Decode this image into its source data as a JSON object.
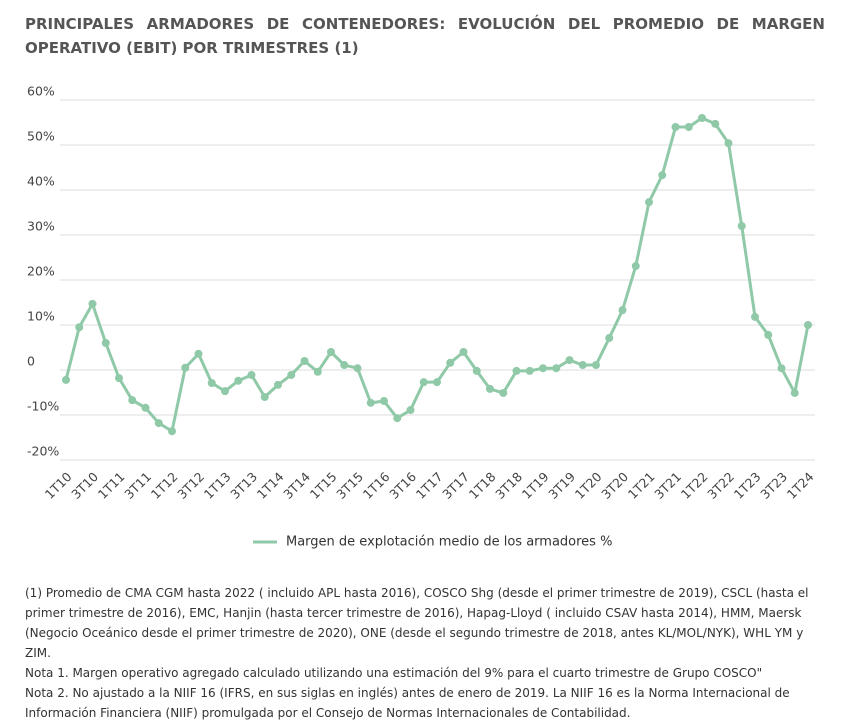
{
  "chart_data": {
    "type": "line",
    "title": "PRINCIPALES ARMADORES DE CONTENEDORES: EVOLUCIÓN DEL PROMEDIO  DE MARGEN OPERATIVO (EBIT) POR TRIMESTRES (1)",
    "categories": [
      "1T10",
      null,
      "3T10",
      null,
      "1T11",
      null,
      "3T11",
      null,
      "1T12",
      null,
      "3T12",
      null,
      "1T13",
      null,
      "3T13",
      null,
      "1T14",
      null,
      "3T14",
      null,
      "1T15",
      null,
      "3T15",
      null,
      "1T16",
      null,
      "3T16",
      null,
      "1T17",
      null,
      "3T17",
      null,
      "1T18",
      null,
      "3T18",
      null,
      "1T19",
      null,
      "3T19",
      null,
      "1T20",
      null,
      "3T20",
      null,
      "1T21",
      null,
      "3T21",
      null,
      "1T22",
      null,
      "3T22",
      null,
      "1T23",
      null,
      "3T23",
      null,
      "1T24"
    ],
    "series": [
      {
        "name": "Margen de explotación medio de los armadores %",
        "color": "#8fc9a8",
        "values": [
          -2.2,
          9.5,
          14.7,
          6,
          -1.8,
          -6.7,
          -8.4,
          -11.8,
          -13.6,
          0.5,
          3.6,
          -2.9,
          -4.7,
          -2.4,
          -1.1,
          -6,
          -3.3,
          -1.1,
          2,
          -0.4,
          4,
          1.1,
          0.4,
          -7.3,
          -6.9,
          -10.7,
          -8.9,
          -2.7,
          -2.7,
          1.6,
          4,
          -0.2,
          -4.2,
          -5.1,
          -0.2,
          -0.2,
          0.4,
          0.4,
          2.2,
          1.1,
          1.1,
          7.1,
          13.3,
          23.1,
          37.3,
          43.3,
          54,
          54,
          56,
          54.7,
          50.4,
          32,
          11.8,
          7.8,
          0.4,
          -5.1,
          10
        ]
      }
    ],
    "ylim": [
      -20,
      60
    ],
    "yticks": [
      {
        "value": -20,
        "label": "-20%"
      },
      {
        "value": -10,
        "label": "-10%"
      },
      0,
      {
        "value": 10,
        "label": "10%"
      },
      {
        "value": 20,
        "label": "20%"
      },
      {
        "value": 30,
        "label": "30%"
      },
      {
        "value": 40,
        "label": "40%"
      },
      {
        "value": 50,
        "label": "50%"
      },
      {
        "value": 60,
        "label": "60%"
      }
    ],
    "grid": true,
    "notes": [
      "(1) Promedio de CMA CGM hasta 2022 ( incluido APL hasta 2016), COSCO Shg (desde el primer trimestre de 2019), CSCL (hasta el primer trimestre de 2016), EMC, Hanjin (hasta tercer trimestre de 2016), Hapag-Lloyd ( incluido CSAV hasta 2014), HMM, Maersk (Negocio Oceánico desde el primer trimestre de 2020), ONE (desde el segundo trimestre de 2018, antes KL/MOL/NYK), WHL YM y ZIM.",
      "Nota 1. Margen operativo agregado calculado utilizando una estimación del 9% para el cuarto trimestre de  Grupo COSCO\"",
      "Nota 2. No ajustado a la NIIF 16  (IFRS, en sus siglas en inglés)  antes  de enero de 2019. La NIIF 16 es la Norma Internacional de Información Financiera (NIIF) promulgada por el Consejo de Normas Internacionales de Contabilidad."
    ]
  }
}
